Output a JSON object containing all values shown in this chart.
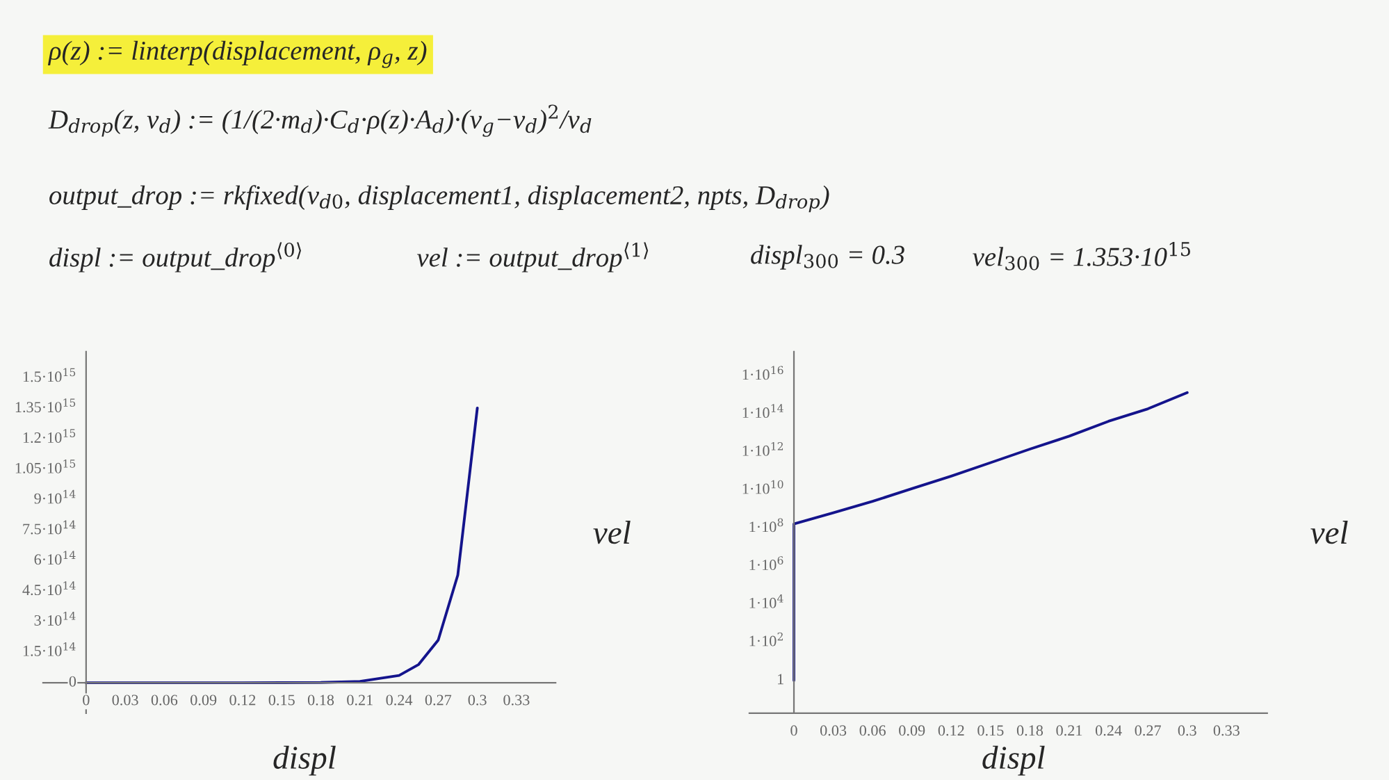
{
  "chart_data": [
    {
      "type": "line",
      "xlabel": "displ",
      "ylabel": "vel",
      "legend": false,
      "grid": false,
      "annotations": [
        "ρ(z) := linterp(displacement, ρ$_{g}$, z)",
        "D$_{drop}$(z, v$_{d}$) := (1/(2·m$_{d}$)·C$_{d}$·ρ(z)·A$_{d}$)·(v$_{g}$−v$_{d}$)$^{2}$/v$_{d}$",
        "output_drop := rkfixed(v$_{d0}$, displacement1, displacement2, npts, D$_{drop}$)",
        "displ := output_drop$^{⟨0⟩}$",
        "vel := output_drop$^{⟨1⟩}$",
        "displ$_{300}$ = 0.3",
        "vel$_{300}$ = 1.353·10$^{15}$"
      ],
      "xlim": [
        -0.033,
        0.36
      ],
      "ylim": [
        -150000000000000.0,
        1630000000000000.0
      ],
      "xticks": [
        0,
        0.03,
        0.06,
        0.09,
        0.12,
        0.15,
        0.18,
        0.21,
        0.24,
        0.27,
        0.3,
        0.33
      ],
      "yticks": [
        0,
        {
          "value": 150000000000000.0,
          "label": "1.5·10$^{14}$"
        },
        {
          "value": 300000000000000.0,
          "label": "3·10$^{14}$"
        },
        {
          "value": 450000000000000.0,
          "label": "4.5·10$^{14}$"
        },
        {
          "value": 600000000000000.0,
          "label": "6·10$^{14}$"
        },
        {
          "value": 750000000000000.0,
          "label": "7.5·10$^{14}$"
        },
        {
          "value": 900000000000000.0,
          "label": "9·10$^{14}$"
        },
        {
          "value": 1050000000000000.0,
          "label": "1.05·10$^{15}$"
        },
        {
          "value": 1200000000000000.0,
          "label": "1.2·10$^{15}$"
        },
        {
          "value": 1350000000000000.0,
          "label": "1.35·10$^{15}$"
        },
        {
          "value": 1500000000000000.0,
          "label": "1.5·10$^{15}$"
        }
      ],
      "series": [
        {
          "color": "#14148c",
          "x": [
            0,
            0,
            0.03,
            0.06,
            0.09,
            0.12,
            0.15,
            0.18,
            0.21,
            0.24,
            0.255,
            0.27,
            0.285,
            0.3
          ],
          "values": [
            1,
            170000000.0,
            650000000.0,
            2600000000.0,
            12000000000.0,
            55000000000.0,
            280000000000.0,
            1450000000000.0,
            6900000000000.0,
            36000000000000.0,
            90000000000000.0,
            210000000000000.0,
            530000000000000.0,
            1353000000000000.0
          ]
        }
      ]
    },
    {
      "type": "line",
      "xlabel": "displ",
      "ylabel": "vel",
      "legend": false,
      "grid": false,
      "log": "y",
      "xlim": [
        -0.034,
        0.361
      ],
      "ylim": [
        0.019,
        1.9e+17
      ],
      "xticks": [
        0,
        0.03,
        0.06,
        0.09,
        0.12,
        0.15,
        0.18,
        0.21,
        0.24,
        0.27,
        0.3,
        0.33
      ],
      "yticks": [
        1,
        {
          "value": 100.0,
          "label": "1·10$^{2}$"
        },
        {
          "value": 10000.0,
          "label": "1·10$^{4}$"
        },
        {
          "value": 1000000.0,
          "label": "1·10$^{6}$"
        },
        {
          "value": 100000000.0,
          "label": "1·10$^{8}$"
        },
        {
          "value": 10000000000.0,
          "label": "1·10$^{10}$"
        },
        {
          "value": 1000000000000.0,
          "label": "1·10$^{12}$"
        },
        {
          "value": 100000000000000.0,
          "label": "1·10$^{14}$"
        },
        {
          "value": 1e+16,
          "label": "1·10$^{16}$"
        }
      ],
      "series": [
        {
          "color": "#14148c",
          "x": [
            0,
            0,
            0.03,
            0.06,
            0.09,
            0.12,
            0.15,
            0.18,
            0.21,
            0.24,
            0.27,
            0.3
          ],
          "values": [
            1,
            170000000.0,
            650000000.0,
            2600000000.0,
            12000000000.0,
            55000000000.0,
            280000000000.0,
            1450000000000.0,
            6900000000000.0,
            42000000000000.0,
            190000000000000.0,
            1353000000000000.0
          ]
        }
      ]
    }
  ]
}
